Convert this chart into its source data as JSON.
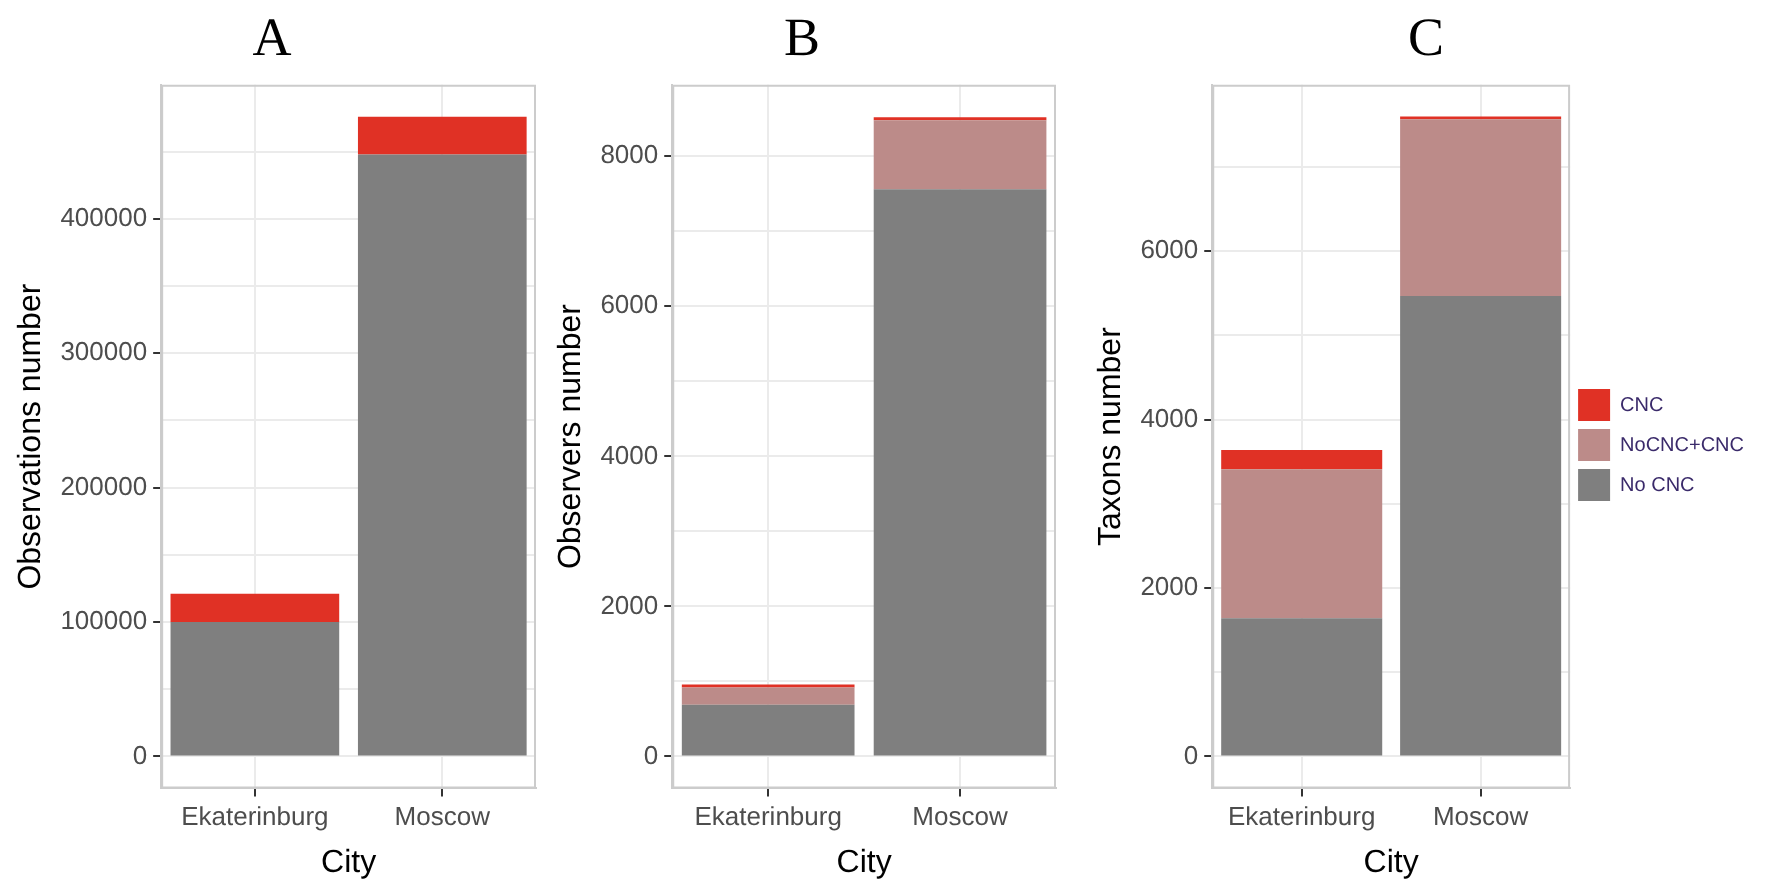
{
  "chart_data": [
    {
      "type": "bar",
      "title": "A",
      "xlabel": "City",
      "ylabel": "Observations number",
      "categories": [
        "Ekaterinburg",
        "Moscow"
      ],
      "stacked": true,
      "grid": true,
      "series": [
        {
          "color": "#7f7f7f",
          "values": [
            100000,
            448000
          ]
        },
        {
          "color": "#e03125",
          "values": [
            21000,
            28000
          ]
        }
      ],
      "ylim": [
        -23800,
        499800
      ],
      "yticks": [
        0,
        {
          "value": 50000,
          "label": null
        },
        100000,
        {
          "value": 150000,
          "label": null
        },
        200000,
        {
          "value": 250000,
          "label": null
        },
        300000,
        {
          "value": 350000,
          "label": null
        },
        400000,
        {
          "value": 450000,
          "label": null
        }
      ]
    },
    {
      "type": "bar",
      "title": "B",
      "xlabel": "City",
      "ylabel": "Observers number",
      "categories": [
        "Ekaterinburg",
        "Moscow"
      ],
      "stacked": true,
      "grid": true,
      "series": [
        {
          "color": "#7f7f7f",
          "values": [
            690,
            7560
          ]
        },
        {
          "color": "#bc8b89",
          "values": [
            230,
            920
          ]
        },
        {
          "color": "#e03125",
          "values": [
            40,
            40
          ]
        }
      ],
      "ylim": [
        -426,
        8953
      ],
      "yticks": [
        0,
        {
          "value": 1000,
          "label": null
        },
        2000,
        {
          "value": 3000,
          "label": null
        },
        4000,
        {
          "value": 5000,
          "label": null
        },
        6000,
        {
          "value": 7000,
          "label": null
        },
        8000
      ]
    },
    {
      "type": "bar",
      "title": "C",
      "xlabel": "City",
      "ylabel": "Taxons number",
      "categories": [
        "Ekaterinburg",
        "Moscow"
      ],
      "stacked": true,
      "grid": true,
      "legend": "right",
      "series": [
        {
          "name": "No CNC",
          "color": "#7f7f7f",
          "values": [
            1640,
            5470
          ]
        },
        {
          "name": "NoCNC+CNC",
          "color": "#bc8b89",
          "values": [
            1770,
            2100
          ]
        },
        {
          "name": "CNC",
          "color": "#e03125",
          "values": [
            230,
            30
          ]
        }
      ],
      "ylim": [
        -380,
        7978
      ],
      "yticks": [
        0,
        {
          "value": 1000,
          "label": null
        },
        2000,
        {
          "value": 3000,
          "label": null
        },
        4000,
        {
          "value": 5000,
          "label": null
        },
        6000,
        {
          "value": 7000,
          "label": null
        }
      ]
    }
  ]
}
